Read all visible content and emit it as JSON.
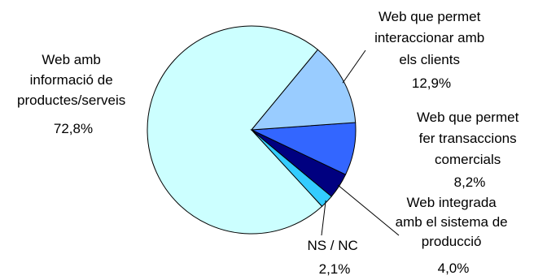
{
  "chart_data": {
    "type": "pie",
    "title": "",
    "slices": [
      {
        "name": "Web amb informació de productes/serveis",
        "label_lines": [
          "Web amb",
          "informació de",
          "productes/serveis"
        ],
        "value_label": "72,8%",
        "value": 72.8,
        "color": "#ccffff"
      },
      {
        "name": "NS / NC",
        "label_lines": [
          "NS / NC"
        ],
        "value_label": "2,1%",
        "value": 2.1,
        "color": "#33ccff"
      },
      {
        "name": "Web integrada amb el sistema de producció",
        "label_lines": [
          "Web integrada",
          "amb el sistema de",
          "producció"
        ],
        "value_label": "4,0%",
        "value": 4.0,
        "color": "#000080"
      },
      {
        "name": "Web que permet fer transaccions comercials",
        "label_lines": [
          "Web que permet",
          "fer transaccions",
          "comercials"
        ],
        "value_label": "8,2%",
        "value": 8.2,
        "color": "#3366ff"
      },
      {
        "name": "Web que permet interaccionar amb els clients",
        "label_lines": [
          "Web que permet",
          "interaccionar amb",
          "els clients"
        ],
        "value_label": "12,9%",
        "value": 12.9,
        "color": "#99ccff"
      }
    ]
  }
}
